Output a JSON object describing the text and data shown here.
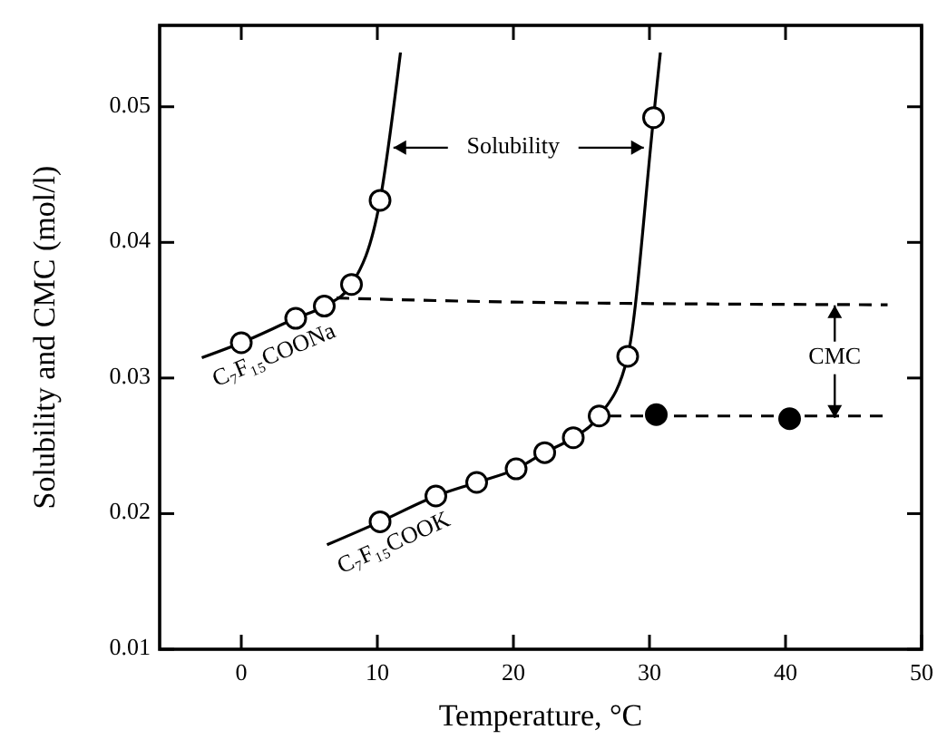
{
  "chart_data": {
    "type": "line",
    "xlabel": "Temperature, °C",
    "ylabel": "Solubility and CMC (mol/l)",
    "xlim": [
      -6,
      50
    ],
    "xticks": [
      0,
      10,
      20,
      30,
      40,
      50
    ],
    "ylim": [
      0.01,
      0.056
    ],
    "yticks": [
      0.01,
      0.02,
      0.03,
      0.04,
      0.05
    ],
    "grid": false,
    "annotations": [
      "Solubility",
      "CMC"
    ],
    "series": [
      {
        "name": "C₇F₁₅COONa",
        "color": "#000000",
        "line_style": "solid",
        "x": [
          -2.9,
          0,
          4,
          6.1,
          8.1,
          10.2,
          11.7
        ],
        "values": [
          0.0315,
          0.0326,
          0.0344,
          0.0353,
          0.0369,
          0.0431,
          0.054
        ]
      },
      {
        "type": "scatter",
        "color": "#ffffff",
        "marker": "circle",
        "x": [
          0,
          4,
          6.1,
          8.1,
          10.2
        ],
        "values": [
          0.0326,
          0.0344,
          0.0353,
          0.0369,
          0.0431
        ]
      },
      {
        "name": "C₇F₁₅COOK",
        "color": "#000000",
        "line_style": "solid",
        "x": [
          6.3,
          10.2,
          14.3,
          17.3,
          20.2,
          22.3,
          24.4,
          26.3,
          28.4,
          30.3,
          30.8
        ],
        "values": [
          0.0177,
          0.0194,
          0.0213,
          0.0223,
          0.0233,
          0.0245,
          0.0256,
          0.0272,
          0.0316,
          0.0492,
          0.054
        ]
      },
      {
        "type": "scatter",
        "color": "#ffffff",
        "marker": "circle",
        "x": [
          10.2,
          14.3,
          17.3,
          20.2,
          22.3,
          24.4,
          26.3,
          28.4,
          30.3
        ],
        "values": [
          0.0194,
          0.0213,
          0.0223,
          0.0233,
          0.0245,
          0.0256,
          0.0272,
          0.0316,
          0.0492
        ]
      },
      {
        "type": "scatter",
        "color": "#000000",
        "marker": "circle",
        "x": [
          30.5,
          40.3
        ],
        "values": [
          0.0273,
          0.027
        ]
      },
      {
        "color": "#000000",
        "line_style": "dashed",
        "x": [
          7,
          20,
          47.5
        ],
        "values": [
          0.0359,
          0.0356,
          0.0354
        ]
      },
      {
        "color": "#000000",
        "line_style": "dashed",
        "x": [
          27,
          47.5
        ],
        "values": [
          0.0272,
          0.0272
        ]
      }
    ]
  }
}
